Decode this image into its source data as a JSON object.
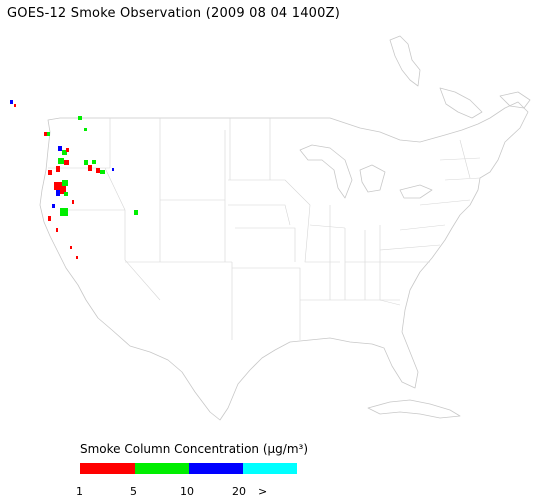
{
  "title": "GOES-12 Smoke Observation (2009 08 04  1400Z)",
  "legend": {
    "title": "Smoke Column Concentration (µg/m³)",
    "bins": [
      {
        "color": "#ff0000"
      },
      {
        "color": "#00ee00"
      },
      {
        "color": "#0000ff"
      },
      {
        "color": "#00ffff"
      }
    ],
    "ticks": [
      "1",
      "5",
      "10",
      "20",
      ">"
    ]
  },
  "colors": {
    "outline": "#c8c8c8",
    "background": "#ffffff"
  }
}
